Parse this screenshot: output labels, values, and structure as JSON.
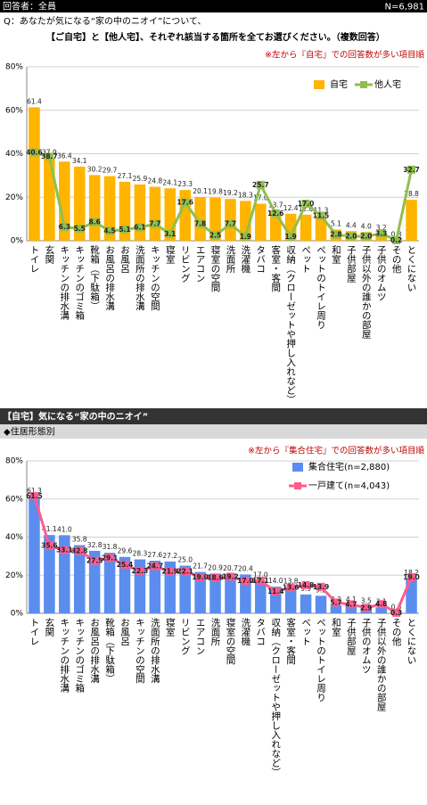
{
  "header": {
    "respondents": "回答者：全員",
    "n": "N=6,981",
    "question_line1": "Q：あなたが気になる“家の中のニオイ”について、",
    "question_line2": "【ご自宅】と【他人宅】、それぞれ該当する箇所を全てお選びください。（複数回答）"
  },
  "section2": {
    "title": "【自宅】気になる“家の中のニオイ”",
    "subtitle": "◆住居形態別"
  },
  "chart_data": [
    {
      "type": "combo",
      "note": "※左から『自宅』での回答数が多い項目順",
      "categories": [
        "トイレ",
        "玄関",
        "キッチンの排水溝",
        "キッチンのゴミ箱",
        "靴箱（下駄箱）",
        "お風呂の排水溝",
        "お風呂",
        "洗面所の排水溝",
        "キッチンの空間",
        "寝室",
        "リビング",
        "エアコン",
        "寝室の空間",
        "洗面所",
        "洗濯機",
        "タバコ",
        "客室・客間",
        "収納（クローゼットや押し入れなど）",
        "ペット",
        "ペットのトイレ周り",
        "和室",
        "子供部屋",
        "子供以外の誰かの部屋",
        "子供のオムツ",
        "その他",
        "とくにない"
      ],
      "series": [
        {
          "name": "自宅",
          "color": "#ffb400",
          "kind": "bar",
          "values": [
            61.4,
            37.9,
            36.4,
            34.1,
            30.2,
            29.7,
            27.1,
            25.9,
            24.8,
            24.1,
            23.3,
            20.1,
            19.8,
            19.2,
            18.3,
            17.0,
            13.7,
            12.4,
            12.0,
            11.3,
            5.1,
            4.4,
            4.0,
            3.2,
            0.3,
            18.8
          ],
          "value_labels": [
            "61.4",
            "37.9",
            "36.4",
            "34.1",
            "30.2",
            "29.7",
            "27.1",
            "25.9",
            "24.8",
            "24.1",
            "23.3",
            "20.1",
            "19.8",
            "19.2",
            "18.3",
            "17.0",
            "13.7",
            "12.4",
            "12.0",
            "11.3",
            "5.1",
            "4.4",
            "4.0",
            "3.2",
            "0.3",
            "18.8"
          ]
        },
        {
          "name": "他人宅",
          "color": "#8fbf4f",
          "kind": "line",
          "values": [
            40.6,
            38.7,
            6.3,
            5.5,
            8.6,
            4.5,
            5.1,
            6.1,
            7.7,
            3.1,
            17.6,
            7.8,
            2.5,
            7.7,
            1.9,
            25.7,
            12.6,
            1.9,
            17.0,
            11.5,
            2.8,
            2.0,
            2.0,
            3.3,
            0.2,
            32.7
          ],
          "value_labels": [
            "40.6",
            "38.7",
            "6.3",
            "5.5",
            "8.6",
            "4.5",
            "5.1",
            "6.1",
            "7.7",
            "3.1",
            "17.6",
            "7.8",
            "2.5",
            "7.7",
            "1.9",
            "25.7",
            "12.6",
            "1.9",
            "17.0",
            "11.5",
            "2.8",
            "2.0",
            "2.0",
            "3.3",
            "0.2",
            "32.7"
          ]
        }
      ],
      "ylim": [
        0,
        80
      ],
      "yticks": [
        {
          "value": 0,
          "label": "0%"
        },
        {
          "value": 20,
          "label": "20%"
        },
        {
          "value": 40,
          "label": "40%"
        },
        {
          "value": 60,
          "label": "60%"
        },
        {
          "value": 80,
          "label": "80%"
        }
      ],
      "grid": true
    },
    {
      "type": "combo",
      "note": "※左から『集合住宅』での回答数が多い項目順",
      "categories": [
        "トイレ",
        "玄関",
        "キッチンの排水溝",
        "キッチンのゴミ箱",
        "お風呂の排水溝",
        "靴箱（下駄箱）",
        "お風呂",
        "キッチンの空間",
        "洗面所の排水溝",
        "寝室",
        "リビング",
        "エアコン",
        "洗面所",
        "寝室の空間",
        "洗濯機",
        "タバコ",
        "収納（クローゼットや押し入れなど）",
        "客室・客間",
        "ペット",
        "ペットのトイレ周り",
        "和室",
        "子供部屋",
        "子供のオムツ",
        "子供以外の誰かの部屋",
        "その他",
        "とくにない"
      ],
      "series": [
        {
          "name": "集合住宅(n=2,880)",
          "color": "#5b8def",
          "kind": "bar",
          "values": [
            61.3,
            41.1,
            41.0,
            35.8,
            32.8,
            31.8,
            29.6,
            28.3,
            27.6,
            27.2,
            25.0,
            21.7,
            20.9,
            20.7,
            20.4,
            17.0,
            14.0,
            13.8,
            9.9,
            9.2,
            4.2,
            4.1,
            3.5,
            3.1,
            0.3,
            18.2
          ],
          "value_labels": [
            "61.3",
            "41.1",
            "41.0",
            "35.8",
            "32.8",
            "31.8",
            "29.6",
            "28.3",
            "27.6",
            "27.2",
            "25.0",
            "21.7",
            "20.9",
            "20.7",
            "20.4",
            "17.0",
            "14.0",
            "13.8",
            "9.9",
            "9.2",
            "4.2",
            "4.1",
            "3.5",
            "3.1",
            "0.3",
            "18.2"
          ]
        },
        {
          "name": "一戸建て(n=4,043)",
          "color": "#ff5c8d",
          "kind": "line",
          "values": [
            61.5,
            35.6,
            33.1,
            32.8,
            27.5,
            29.1,
            25.4,
            22.3,
            24.7,
            21.9,
            22.1,
            19.0,
            18.6,
            19.2,
            17.0,
            17.1,
            11.4,
            13.6,
            14.8,
            13.9,
            5.7,
            4.7,
            2.9,
            4.8,
            0.3,
            19.0
          ],
          "value_labels": [
            "61.5",
            "35.6",
            "33.1",
            "32.8",
            "27.5",
            "29.1",
            "25.4",
            "22.3",
            "24.7",
            "21.9",
            "22.1",
            "19.0",
            "18.6",
            "19.2",
            "17.0",
            "17.1",
            "11.4",
            "13.6",
            "14.8",
            "13.9",
            "5.7",
            "4.7",
            "2.9",
            "4.8",
            "0.3",
            "19.0"
          ]
        }
      ],
      "ylim": [
        0,
        80
      ],
      "yticks": [
        {
          "value": 0,
          "label": "0%"
        },
        {
          "value": 20,
          "label": "20%"
        },
        {
          "value": 40,
          "label": "40%"
        },
        {
          "value": 60,
          "label": "60%"
        },
        {
          "value": 80,
          "label": "80%"
        }
      ],
      "grid": true
    }
  ]
}
